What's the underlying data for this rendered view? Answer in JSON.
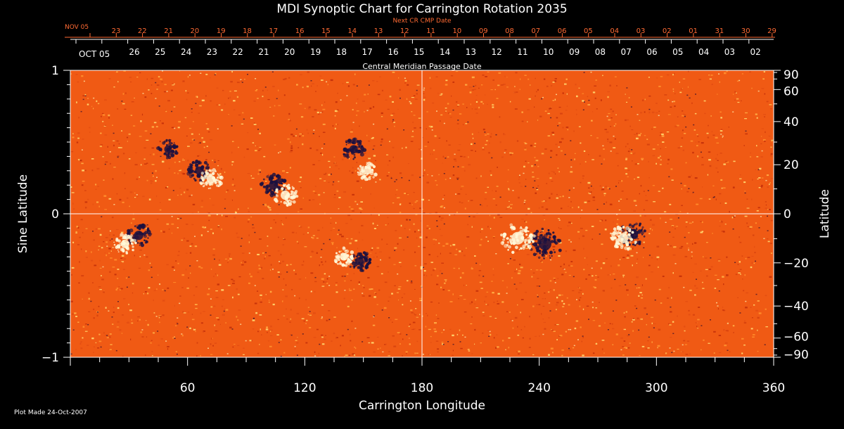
{
  "chart_data": {
    "type": "heatmap",
    "title": "MDI Synoptic Chart for Carrington Rotation 2035",
    "xlabel": "Carrington Longitude",
    "ylabel_left": "Sine Latitude",
    "ylabel_right": "Latitude",
    "xlim": [
      0,
      360
    ],
    "ylim": [
      -1,
      1
    ],
    "x_ticks": [
      60,
      120,
      180,
      240,
      300,
      360
    ],
    "y_ticks_left": [
      -1,
      0,
      1
    ],
    "y_tick_labels_left": [
      "−1",
      "0",
      "1"
    ],
    "y_ticks_right": [
      -90,
      -60,
      -40,
      -20,
      0,
      20,
      40,
      60,
      90
    ],
    "y_tick_labels_right": [
      "−90",
      "−60",
      "−40",
      "−20",
      "0",
      "20",
      "40",
      "60",
      "90"
    ],
    "top_axis_inner_label": "Central Meridian Passage Date",
    "top_axis_inner_start": "OCT 05",
    "top_axis_inner_dates": [
      "26",
      "25",
      "24",
      "23",
      "22",
      "21",
      "20",
      "19",
      "18",
      "17",
      "16",
      "15",
      "14",
      "13",
      "12",
      "11",
      "10",
      "09",
      "08",
      "07",
      "06",
      "05",
      "04",
      "03",
      "02"
    ],
    "top_axis_outer_label": "Next CR CMP Date",
    "top_axis_outer_start": "NOV 05",
    "top_axis_outer_dates": [
      "23",
      "22",
      "21",
      "20",
      "19",
      "18",
      "17",
      "16",
      "15",
      "14",
      "13",
      "12",
      "11",
      "10",
      "09",
      "08",
      "07",
      "06",
      "05",
      "04",
      "03",
      "02",
      "01",
      "31",
      "30",
      "29"
    ],
    "footnote": "Plot Made 24-Oct-2007",
    "colors": {
      "background": "#000000",
      "field_base": "#f05a14",
      "positive_flux": "#fff8d8",
      "negative_flux": "#1a1040",
      "outer_axis_text": "#ff6a33",
      "axis": "#ffffff"
    },
    "active_regions": [
      {
        "lon": 243,
        "sin_lat": -0.21,
        "polarity": "negative",
        "strength": 1.0
      },
      {
        "lon": 229,
        "sin_lat": -0.17,
        "polarity": "positive",
        "strength": 1.0
      },
      {
        "lon": 288,
        "sin_lat": -0.14,
        "polarity": "negative",
        "strength": 0.7
      },
      {
        "lon": 283,
        "sin_lat": -0.17,
        "polarity": "positive",
        "strength": 0.7
      },
      {
        "lon": 35,
        "sin_lat": -0.15,
        "polarity": "negative",
        "strength": 0.6
      },
      {
        "lon": 28,
        "sin_lat": -0.21,
        "polarity": "positive",
        "strength": 0.5
      },
      {
        "lon": 104,
        "sin_lat": 0.2,
        "polarity": "negative",
        "strength": 0.6
      },
      {
        "lon": 110,
        "sin_lat": 0.13,
        "polarity": "positive",
        "strength": 0.6
      },
      {
        "lon": 66,
        "sin_lat": 0.3,
        "polarity": "negative",
        "strength": 0.5
      },
      {
        "lon": 72,
        "sin_lat": 0.24,
        "polarity": "positive",
        "strength": 0.5
      },
      {
        "lon": 145,
        "sin_lat": 0.45,
        "polarity": "negative",
        "strength": 0.5
      },
      {
        "lon": 152,
        "sin_lat": 0.3,
        "polarity": "positive",
        "strength": 0.4
      },
      {
        "lon": 148,
        "sin_lat": -0.33,
        "polarity": "negative",
        "strength": 0.5
      },
      {
        "lon": 140,
        "sin_lat": -0.3,
        "polarity": "positive",
        "strength": 0.4
      },
      {
        "lon": 50,
        "sin_lat": 0.45,
        "polarity": "negative",
        "strength": 0.4
      }
    ]
  }
}
